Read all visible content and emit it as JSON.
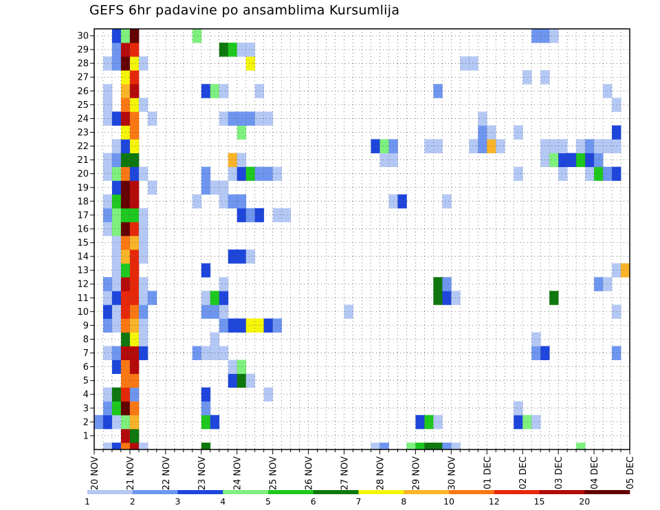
{
  "chart_data": {
    "type": "heatmap",
    "title": "GEFS 6hr padavine po ansamblima Kursumlija",
    "x_tick_labels": [
      "20 NOV",
      "21 NOV",
      "22 NOV",
      "23 NOV",
      "24 NOV",
      "25 NOV",
      "26 NOV",
      "27 NOV",
      "28 NOV",
      "29 NOV",
      "30 NOV",
      "01 DEC",
      "02 DEC",
      "03 DEC",
      "04 DEC",
      "05 DEC"
    ],
    "y_tick_labels": [
      "1",
      "2",
      "3",
      "4",
      "5",
      "6",
      "7",
      "8",
      "9",
      "10",
      "11",
      "12",
      "13",
      "14",
      "15",
      "16",
      "17",
      "18",
      "19",
      "20",
      "21",
      "22",
      "23",
      "24",
      "25",
      "26",
      "27",
      "28",
      "29",
      "30"
    ],
    "members": [
      0,
      30
    ],
    "x_steps_per_day": 4,
    "grid": true,
    "legend_position": "bottom",
    "levels": [
      "1",
      "2",
      "3",
      "4",
      "5",
      "6",
      "7",
      "8",
      "10",
      "12",
      "15",
      "20"
    ],
    "colors": [
      "#b4c8f5",
      "#6e96f0",
      "#1e46dc",
      "#7ef07e",
      "#1ec81e",
      "#0e780e",
      "#f5f50a",
      "#fab428",
      "#fa7814",
      "#e6280a",
      "#b40a0a",
      "#640000"
    ],
    "cells": [
      [
        0,
        1,
        0
      ],
      [
        0,
        2,
        2
      ],
      [
        0,
        3,
        8
      ],
      [
        0,
        4,
        10
      ],
      [
        0,
        5,
        0
      ],
      [
        0,
        12,
        5
      ],
      [
        0,
        31,
        0
      ],
      [
        0,
        32,
        1
      ],
      [
        0,
        35,
        3
      ],
      [
        0,
        36,
        4
      ],
      [
        0,
        37,
        5
      ],
      [
        0,
        38,
        5
      ],
      [
        0,
        39,
        1
      ],
      [
        0,
        40,
        0
      ],
      [
        0,
        54,
        3
      ],
      [
        1,
        3,
        10
      ],
      [
        1,
        4,
        5
      ],
      [
        2,
        0,
        1
      ],
      [
        2,
        1,
        2
      ],
      [
        2,
        2,
        0
      ],
      [
        2,
        3,
        3
      ],
      [
        2,
        4,
        7
      ],
      [
        2,
        12,
        4
      ],
      [
        2,
        13,
        2
      ],
      [
        2,
        36,
        2
      ],
      [
        2,
        37,
        4
      ],
      [
        2,
        38,
        0
      ],
      [
        2,
        47,
        2
      ],
      [
        2,
        48,
        3
      ],
      [
        2,
        49,
        0
      ],
      [
        3,
        1,
        1
      ],
      [
        3,
        2,
        4
      ],
      [
        3,
        3,
        11
      ],
      [
        3,
        4,
        8
      ],
      [
        3,
        12,
        1
      ],
      [
        3,
        47,
        0
      ],
      [
        4,
        1,
        0
      ],
      [
        4,
        2,
        5
      ],
      [
        4,
        3,
        9
      ],
      [
        4,
        4,
        1
      ],
      [
        4,
        12,
        2
      ],
      [
        4,
        19,
        0
      ],
      [
        5,
        3,
        8
      ],
      [
        5,
        4,
        8
      ],
      [
        5,
        15,
        2
      ],
      [
        5,
        16,
        5
      ],
      [
        5,
        17,
        0
      ],
      [
        6,
        2,
        2
      ],
      [
        6,
        3,
        8
      ],
      [
        6,
        4,
        10
      ],
      [
        6,
        15,
        0
      ],
      [
        6,
        16,
        3
      ],
      [
        7,
        1,
        0
      ],
      [
        7,
        2,
        1
      ],
      [
        7,
        3,
        10
      ],
      [
        7,
        4,
        10
      ],
      [
        7,
        5,
        2
      ],
      [
        7,
        11,
        1
      ],
      [
        7,
        12,
        0
      ],
      [
        7,
        13,
        0
      ],
      [
        7,
        14,
        0
      ],
      [
        7,
        49,
        1
      ],
      [
        7,
        50,
        2
      ],
      [
        7,
        58,
        1
      ],
      [
        8,
        3,
        5
      ],
      [
        8,
        4,
        6
      ],
      [
        8,
        5,
        0
      ],
      [
        8,
        13,
        0
      ],
      [
        8,
        49,
        0
      ],
      [
        9,
        1,
        1
      ],
      [
        9,
        2,
        0
      ],
      [
        9,
        3,
        8
      ],
      [
        9,
        4,
        7
      ],
      [
        9,
        5,
        0
      ],
      [
        9,
        14,
        1
      ],
      [
        9,
        15,
        2
      ],
      [
        9,
        16,
        2
      ],
      [
        9,
        17,
        6
      ],
      [
        9,
        18,
        6
      ],
      [
        9,
        19,
        2
      ],
      [
        9,
        20,
        1
      ],
      [
        10,
        1,
        2
      ],
      [
        10,
        2,
        0
      ],
      [
        10,
        3,
        9
      ],
      [
        10,
        4,
        8
      ],
      [
        10,
        5,
        1
      ],
      [
        10,
        12,
        1
      ],
      [
        10,
        13,
        1
      ],
      [
        10,
        14,
        0
      ],
      [
        10,
        28,
        0
      ],
      [
        10,
        58,
        0
      ],
      [
        11,
        1,
        0
      ],
      [
        11,
        2,
        2
      ],
      [
        11,
        3,
        9
      ],
      [
        11,
        4,
        9
      ],
      [
        11,
        5,
        0
      ],
      [
        11,
        6,
        1
      ],
      [
        11,
        12,
        0
      ],
      [
        11,
        13,
        4
      ],
      [
        11,
        14,
        2
      ],
      [
        11,
        38,
        5
      ],
      [
        11,
        39,
        2
      ],
      [
        11,
        40,
        0
      ],
      [
        11,
        51,
        5
      ],
      [
        12,
        1,
        1
      ],
      [
        12,
        2,
        0
      ],
      [
        12,
        3,
        10
      ],
      [
        12,
        4,
        9
      ],
      [
        12,
        5,
        0
      ],
      [
        12,
        14,
        0
      ],
      [
        12,
        38,
        5
      ],
      [
        12,
        39,
        1
      ],
      [
        12,
        56,
        1
      ],
      [
        12,
        57,
        0
      ],
      [
        13,
        2,
        0
      ],
      [
        13,
        3,
        4
      ],
      [
        13,
        4,
        9
      ],
      [
        13,
        12,
        2
      ],
      [
        13,
        58,
        0
      ],
      [
        13,
        59,
        7
      ],
      [
        14,
        2,
        0
      ],
      [
        14,
        3,
        7
      ],
      [
        14,
        4,
        9
      ],
      [
        14,
        5,
        0
      ],
      [
        14,
        15,
        2
      ],
      [
        14,
        16,
        2
      ],
      [
        14,
        17,
        0
      ],
      [
        15,
        2,
        0
      ],
      [
        15,
        3,
        8
      ],
      [
        15,
        4,
        7
      ],
      [
        15,
        5,
        0
      ],
      [
        16,
        1,
        0
      ],
      [
        16,
        2,
        3
      ],
      [
        16,
        3,
        11
      ],
      [
        16,
        4,
        9
      ],
      [
        16,
        5,
        0
      ],
      [
        17,
        1,
        1
      ],
      [
        17,
        2,
        3
      ],
      [
        17,
        3,
        4
      ],
      [
        17,
        4,
        4
      ],
      [
        17,
        5,
        0
      ],
      [
        17,
        16,
        2
      ],
      [
        17,
        17,
        1
      ],
      [
        17,
        18,
        2
      ],
      [
        17,
        20,
        0
      ],
      [
        17,
        21,
        0
      ],
      [
        18,
        1,
        0
      ],
      [
        18,
        2,
        4
      ],
      [
        18,
        3,
        11
      ],
      [
        18,
        4,
        10
      ],
      [
        18,
        11,
        0
      ],
      [
        18,
        14,
        0
      ],
      [
        18,
        15,
        1
      ],
      [
        18,
        16,
        1
      ],
      [
        18,
        33,
        0
      ],
      [
        18,
        34,
        2
      ],
      [
        18,
        39,
        0
      ],
      [
        19,
        2,
        2
      ],
      [
        19,
        3,
        11
      ],
      [
        19,
        4,
        10
      ],
      [
        19,
        6,
        0
      ],
      [
        19,
        12,
        1
      ],
      [
        19,
        13,
        0
      ],
      [
        19,
        14,
        0
      ],
      [
        20,
        1,
        0
      ],
      [
        20,
        2,
        3
      ],
      [
        20,
        3,
        8
      ],
      [
        20,
        4,
        2
      ],
      [
        20,
        5,
        0
      ],
      [
        20,
        12,
        1
      ],
      [
        20,
        15,
        0
      ],
      [
        20,
        16,
        2
      ],
      [
        20,
        17,
        4
      ],
      [
        20,
        18,
        1
      ],
      [
        20,
        19,
        1
      ],
      [
        20,
        20,
        0
      ],
      [
        20,
        47,
        0
      ],
      [
        20,
        52,
        0
      ],
      [
        20,
        55,
        0
      ],
      [
        20,
        56,
        4
      ],
      [
        20,
        57,
        1
      ],
      [
        20,
        58,
        2
      ],
      [
        21,
        1,
        0
      ],
      [
        21,
        2,
        1
      ],
      [
        21,
        3,
        5
      ],
      [
        21,
        4,
        5
      ],
      [
        21,
        15,
        7
      ],
      [
        21,
        16,
        0
      ],
      [
        21,
        32,
        0
      ],
      [
        21,
        33,
        0
      ],
      [
        21,
        50,
        0
      ],
      [
        21,
        51,
        3
      ],
      [
        21,
        52,
        2
      ],
      [
        21,
        53,
        2
      ],
      [
        21,
        54,
        4
      ],
      [
        21,
        55,
        2
      ],
      [
        21,
        56,
        1
      ],
      [
        22,
        2,
        0
      ],
      [
        22,
        3,
        2
      ],
      [
        22,
        4,
        6
      ],
      [
        22,
        31,
        2
      ],
      [
        22,
        32,
        3
      ],
      [
        22,
        33,
        1
      ],
      [
        22,
        37,
        0
      ],
      [
        22,
        38,
        0
      ],
      [
        22,
        42,
        0
      ],
      [
        22,
        43,
        1
      ],
      [
        22,
        44,
        7
      ],
      [
        22,
        45,
        0
      ],
      [
        22,
        50,
        0
      ],
      [
        22,
        51,
        0
      ],
      [
        22,
        52,
        0
      ],
      [
        22,
        54,
        0
      ],
      [
        22,
        55,
        1
      ],
      [
        22,
        56,
        0
      ],
      [
        22,
        57,
        0
      ],
      [
        22,
        58,
        0
      ],
      [
        23,
        3,
        6
      ],
      [
        23,
        4,
        8
      ],
      [
        23,
        16,
        3
      ],
      [
        23,
        43,
        1
      ],
      [
        23,
        44,
        0
      ],
      [
        23,
        47,
        0
      ],
      [
        23,
        58,
        2
      ],
      [
        24,
        1,
        0
      ],
      [
        24,
        2,
        2
      ],
      [
        24,
        3,
        10
      ],
      [
        24,
        4,
        8
      ],
      [
        24,
        6,
        0
      ],
      [
        24,
        14,
        0
      ],
      [
        24,
        15,
        1
      ],
      [
        24,
        16,
        1
      ],
      [
        24,
        17,
        1
      ],
      [
        24,
        18,
        0
      ],
      [
        24,
        19,
        0
      ],
      [
        24,
        43,
        0
      ],
      [
        25,
        1,
        0
      ],
      [
        25,
        3,
        8
      ],
      [
        25,
        4,
        6
      ],
      [
        25,
        5,
        0
      ],
      [
        25,
        58,
        0
      ],
      [
        26,
        1,
        0
      ],
      [
        26,
        3,
        7
      ],
      [
        26,
        4,
        10
      ],
      [
        26,
        12,
        2
      ],
      [
        26,
        13,
        3
      ],
      [
        26,
        14,
        0
      ],
      [
        26,
        18,
        0
      ],
      [
        26,
        38,
        1
      ],
      [
        26,
        57,
        0
      ],
      [
        27,
        3,
        6
      ],
      [
        27,
        4,
        9
      ],
      [
        27,
        48,
        0
      ],
      [
        27,
        50,
        0
      ],
      [
        28,
        1,
        0
      ],
      [
        28,
        2,
        1
      ],
      [
        28,
        3,
        11
      ],
      [
        28,
        4,
        6
      ],
      [
        28,
        5,
        0
      ],
      [
        28,
        17,
        6
      ],
      [
        28,
        41,
        0
      ],
      [
        28,
        42,
        0
      ],
      [
        29,
        2,
        1
      ],
      [
        29,
        3,
        10
      ],
      [
        29,
        4,
        9
      ],
      [
        29,
        14,
        5
      ],
      [
        29,
        15,
        4
      ],
      [
        29,
        16,
        0
      ],
      [
        29,
        17,
        0
      ],
      [
        30,
        2,
        2
      ],
      [
        30,
        3,
        3
      ],
      [
        30,
        4,
        11
      ],
      [
        30,
        11,
        3
      ],
      [
        30,
        49,
        1
      ],
      [
        30,
        50,
        1
      ],
      [
        30,
        51,
        0
      ]
    ]
  }
}
